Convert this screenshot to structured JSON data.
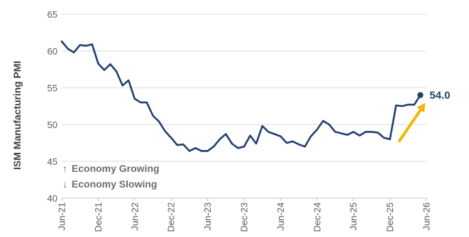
{
  "chart_data": {
    "type": "line",
    "title": "",
    "xlabel": "",
    "ylabel": "ISM Manufacturing PMI",
    "ylim": [
      40,
      65
    ],
    "y_ticks": [
      "40",
      "45",
      "50",
      "55",
      "60",
      "65"
    ],
    "x_tick_labels": [
      "Jun-21",
      "Dec-21",
      "Jun-22",
      "Dec-22",
      "Jun-23",
      "Dec-23",
      "Jun-24",
      "Dec-24",
      "Jun-25",
      "Dec-25",
      "Jun-26"
    ],
    "grid": "horizontal",
    "legend": "none",
    "x_start": "2021-06",
    "x_end": "2026-06",
    "series": [
      {
        "color": "#1f3f6e",
        "points": [
          [
            "2021-06",
            61.3
          ],
          [
            "2021-07",
            60.3
          ],
          [
            "2021-08",
            59.8
          ],
          [
            "2021-09",
            60.8
          ],
          [
            "2021-10",
            60.7
          ],
          [
            "2021-11",
            60.9
          ],
          [
            "2021-12",
            58.3
          ],
          [
            "2022-01",
            57.4
          ],
          [
            "2022-02",
            58.2
          ],
          [
            "2022-03",
            57.2
          ],
          [
            "2022-04",
            55.3
          ],
          [
            "2022-05",
            56.0
          ],
          [
            "2022-06",
            53.5
          ],
          [
            "2022-07",
            53.0
          ],
          [
            "2022-08",
            53.0
          ],
          [
            "2022-09",
            51.2
          ],
          [
            "2022-10",
            50.4
          ],
          [
            "2022-11",
            49.1
          ],
          [
            "2022-12",
            48.2
          ],
          [
            "2023-01",
            47.2
          ],
          [
            "2023-02",
            47.3
          ],
          [
            "2023-03",
            46.4
          ],
          [
            "2023-04",
            46.8
          ],
          [
            "2023-05",
            46.4
          ],
          [
            "2023-06",
            46.4
          ],
          [
            "2023-07",
            47.0
          ],
          [
            "2023-08",
            48.0
          ],
          [
            "2023-09",
            48.7
          ],
          [
            "2023-10",
            47.4
          ],
          [
            "2023-11",
            46.8
          ],
          [
            "2023-12",
            47.0
          ],
          [
            "2024-01",
            48.5
          ],
          [
            "2024-02",
            47.4
          ],
          [
            "2024-03",
            49.8
          ],
          [
            "2024-04",
            49.0
          ],
          [
            "2024-05",
            48.7
          ],
          [
            "2024-06",
            48.4
          ],
          [
            "2024-07",
            47.5
          ],
          [
            "2024-08",
            47.7
          ],
          [
            "2024-09",
            47.3
          ],
          [
            "2024-10",
            47.0
          ],
          [
            "2024-11",
            48.4
          ],
          [
            "2024-12",
            49.3
          ],
          [
            "2025-01",
            50.5
          ],
          [
            "2025-02",
            50.0
          ],
          [
            "2025-03",
            49.0
          ],
          [
            "2025-04",
            48.8
          ],
          [
            "2025-05",
            48.6
          ],
          [
            "2025-06",
            49.0
          ],
          [
            "2025-07",
            48.5
          ],
          [
            "2025-08",
            49.0
          ],
          [
            "2025-09",
            49.0
          ],
          [
            "2025-10",
            48.9
          ],
          [
            "2025-11",
            48.2
          ],
          [
            "2025-12",
            48.0
          ],
          [
            "2026-01",
            52.6
          ],
          [
            "2026-02",
            52.5
          ],
          [
            "2026-03",
            52.7
          ],
          [
            "2026-04",
            52.7
          ],
          [
            "2026-05",
            54.0
          ]
        ]
      }
    ],
    "last_value_label": "54.0",
    "last_value_color": "#1f3f6e",
    "arrow_color": "#f2b705",
    "annotations": [
      {
        "arrow_glyph": "↑",
        "text": "Economy Growing"
      },
      {
        "arrow_glyph": "↓",
        "text": "Economy Slowing"
      }
    ]
  }
}
